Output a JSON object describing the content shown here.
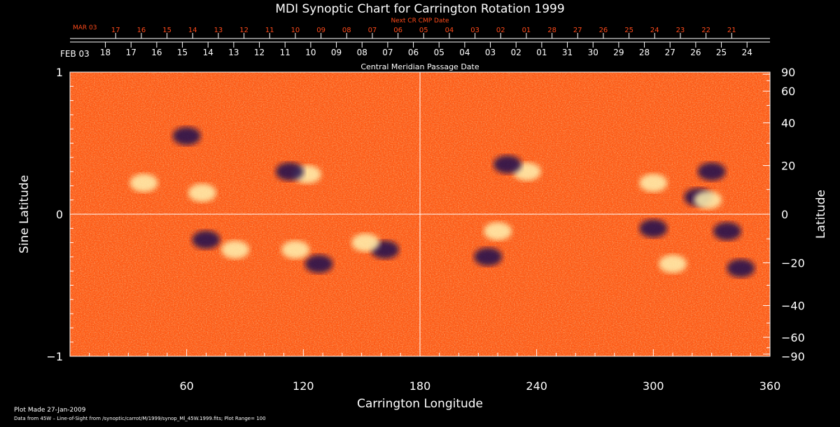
{
  "chart_data": {
    "type": "heatmap",
    "title": "MDI Synoptic Chart for Carrington Rotation 1999",
    "xlabel": "Carrington Longitude",
    "ylabel_left": "Sine Latitude",
    "ylabel_right": "Latitude",
    "top_axis_label": "Central Meridian Passage Date",
    "next_cr_label": "Next CR CMP Date",
    "xlim": [
      0,
      360
    ],
    "ylim": [
      -1,
      1
    ],
    "x_ticks": [
      60,
      120,
      180,
      240,
      300,
      360
    ],
    "y_ticks_left": [
      "1",
      "0",
      "−1"
    ],
    "lat_ticks": [
      {
        "deg": 90,
        "label": "90"
      },
      {
        "deg": 60,
        "label": "60"
      },
      {
        "deg": 40,
        "label": "40"
      },
      {
        "deg": 20,
        "label": "20"
      },
      {
        "deg": 0,
        "label": "0"
      },
      {
        "deg": -20,
        "label": "−20"
      },
      {
        "deg": -40,
        "label": "−40"
      },
      {
        "deg": -60,
        "label": "−60"
      },
      {
        "deg": -90,
        "label": "−90"
      }
    ],
    "cmp_first_label": "FEB 03",
    "cmp_dates": [
      "18",
      "17",
      "16",
      "15",
      "14",
      "13",
      "12",
      "11",
      "10",
      "09",
      "08",
      "07",
      "06",
      "05",
      "04",
      "03",
      "02",
      "01",
      "31",
      "30",
      "29",
      "28",
      "27",
      "26",
      "25",
      "24"
    ],
    "next_first_label": "MAR 03",
    "next_dates": [
      "17",
      "16",
      "15",
      "14",
      "13",
      "12",
      "11",
      "10",
      "09",
      "08",
      "07",
      "06",
      "05",
      "04",
      "03",
      "02",
      "01",
      "28",
      "27",
      "26",
      "25",
      "24",
      "23",
      "22",
      "21"
    ],
    "colors": {
      "background": "#ff5a14",
      "positive": "#fff2b0",
      "negative": "#1a1050",
      "grid": "#ffffff",
      "accent_text": "#ff4a1a"
    },
    "features": [
      {
        "lon": 122,
        "lat": 0.28,
        "polarity": "positive"
      },
      {
        "lon": 113,
        "lat": 0.3,
        "polarity": "negative"
      },
      {
        "lon": 68,
        "lat": 0.15,
        "polarity": "positive"
      },
      {
        "lon": 38,
        "lat": 0.22,
        "polarity": "positive"
      },
      {
        "lon": 60,
        "lat": 0.55,
        "polarity": "negative"
      },
      {
        "lon": 162,
        "lat": -0.25,
        "polarity": "negative"
      },
      {
        "lon": 152,
        "lat": -0.2,
        "polarity": "positive"
      },
      {
        "lon": 128,
        "lat": -0.35,
        "polarity": "negative"
      },
      {
        "lon": 116,
        "lat": -0.25,
        "polarity": "positive"
      },
      {
        "lon": 70,
        "lat": -0.18,
        "polarity": "negative"
      },
      {
        "lon": 85,
        "lat": -0.25,
        "polarity": "positive"
      },
      {
        "lon": 220,
        "lat": -0.12,
        "polarity": "positive"
      },
      {
        "lon": 215,
        "lat": -0.3,
        "polarity": "negative"
      },
      {
        "lon": 235,
        "lat": 0.3,
        "polarity": "positive"
      },
      {
        "lon": 225,
        "lat": 0.35,
        "polarity": "negative"
      },
      {
        "lon": 323,
        "lat": 0.12,
        "polarity": "negative"
      },
      {
        "lon": 328,
        "lat": 0.1,
        "polarity": "positive"
      },
      {
        "lon": 300,
        "lat": -0.1,
        "polarity": "negative"
      },
      {
        "lon": 310,
        "lat": -0.35,
        "polarity": "positive"
      },
      {
        "lon": 345,
        "lat": -0.38,
        "polarity": "negative"
      },
      {
        "lon": 338,
        "lat": -0.12,
        "polarity": "negative"
      },
      {
        "lon": 330,
        "lat": 0.3,
        "polarity": "negative"
      },
      {
        "lon": 300,
        "lat": 0.22,
        "polarity": "positive"
      }
    ]
  },
  "footer": {
    "plot_made": "Plot Made 27-Jan-2009",
    "data_from": "Data from 45W – Line-of-Sight from /synoptic/carrot/M/1999/synop_Ml_45W.1999.fits; Plot Range= 100"
  }
}
